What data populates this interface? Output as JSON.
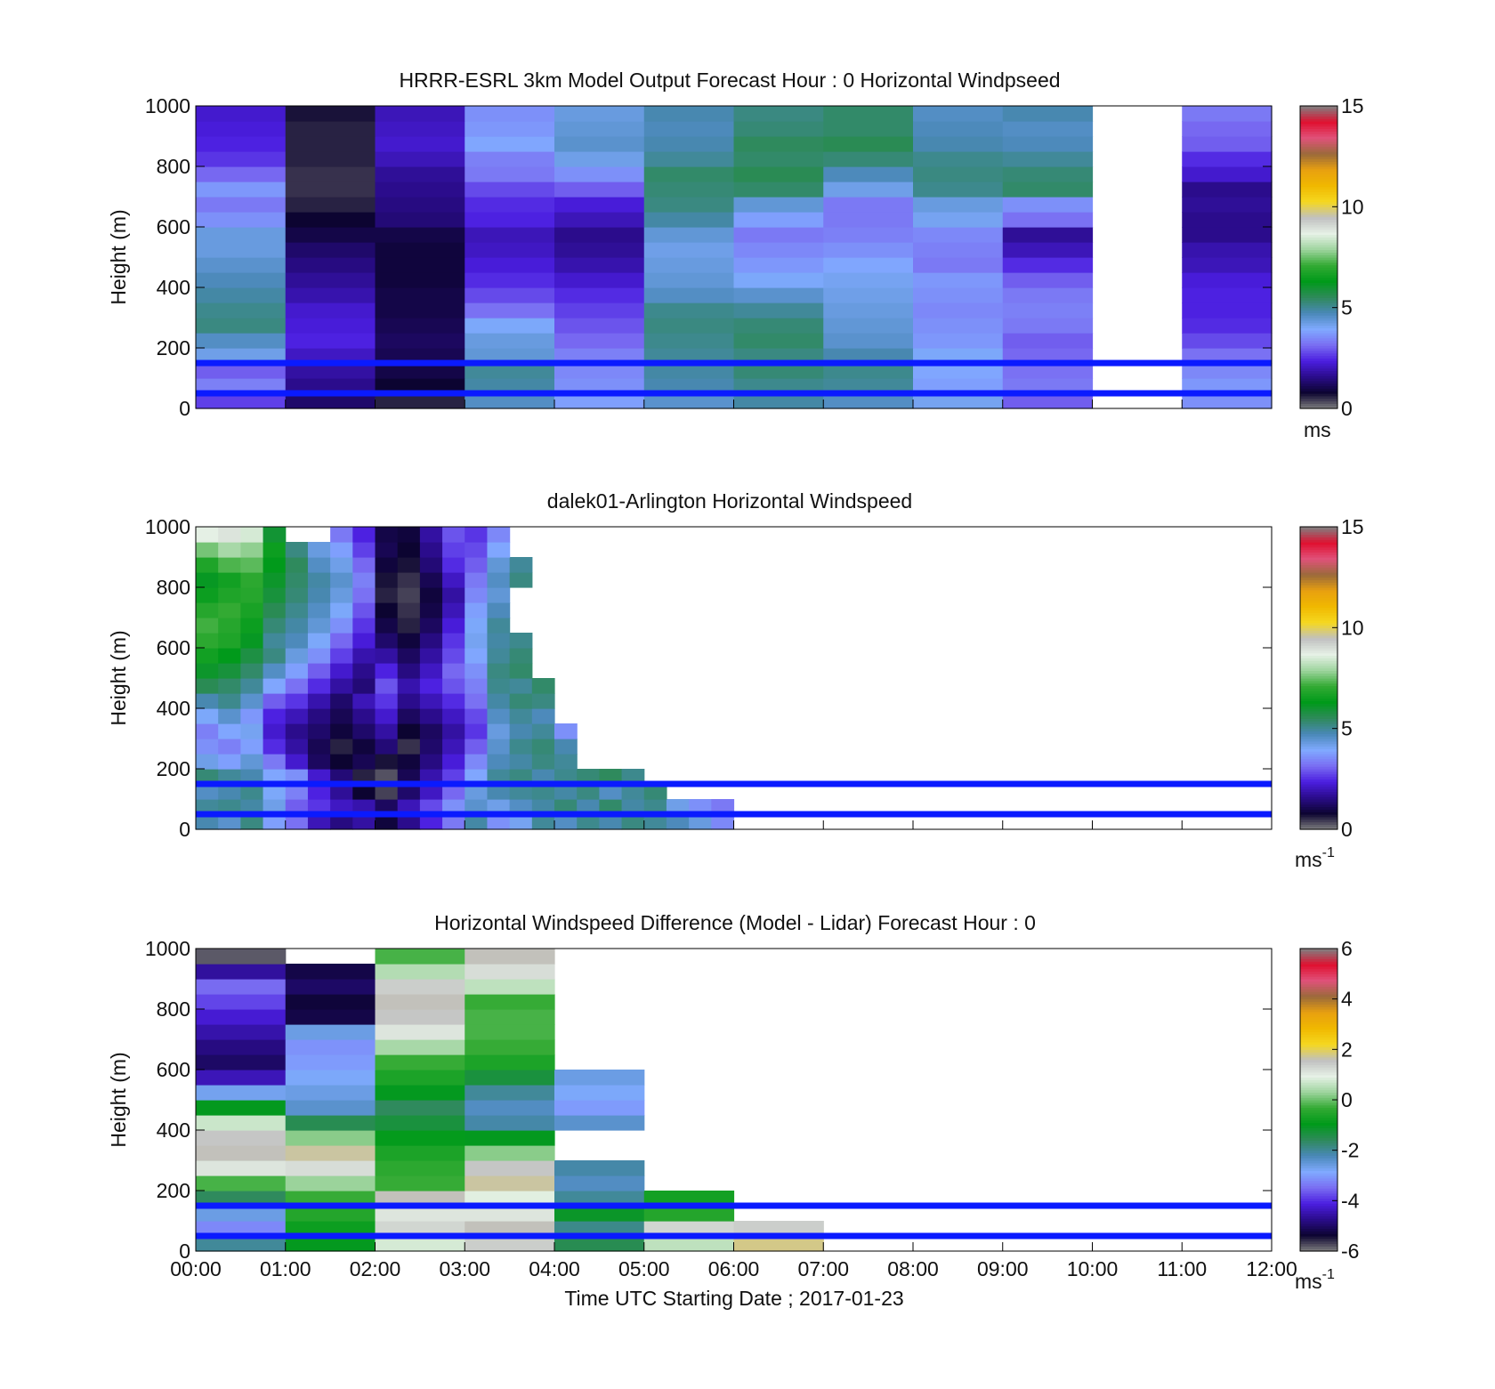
{
  "figure": {
    "xlabel": "Time UTC  Starting Date ; 2017-01-23"
  },
  "chart_data": [
    {
      "type": "heatmap",
      "title": "HRRR-ESRL 3km Model Output   Forecast Hour : 0 Horizontal Windpseed",
      "ylabel": "Height (m)",
      "xlabel": "",
      "xlim": [
        "00:00",
        "12:00"
      ],
      "ylim": [
        0,
        1000
      ],
      "x_ticks": [
        "00:00",
        "01:00",
        "02:00",
        "03:00",
        "04:00",
        "05:00",
        "06:00",
        "07:00",
        "08:00",
        "09:00",
        "10:00",
        "11:00",
        "12:00"
      ],
      "y_ticks": [
        0,
        200,
        400,
        600,
        800,
        1000
      ],
      "show_x_tick_labels": false,
      "height_bins_m": [
        0,
        50,
        100,
        150,
        200,
        250,
        300,
        350,
        400,
        450,
        500,
        550,
        600,
        650,
        700,
        750,
        800,
        850,
        900,
        950,
        1000
      ],
      "time_bins_hour": [
        0,
        1,
        2,
        3,
        4,
        5,
        6,
        7,
        8,
        9,
        10,
        11,
        12
      ],
      "values_ms": [
        [
          2.7,
          1.3,
          0.6,
          4.6,
          3.8,
          4.5,
          4.9,
          4.6,
          4.1,
          3.0,
          null,
          3.6
        ],
        [
          3.4,
          1.6,
          0.8,
          4.9,
          3.6,
          4.8,
          5.1,
          5.0,
          3.8,
          3.3,
          null,
          3.7
        ],
        [
          3.0,
          1.8,
          1.0,
          5.0,
          3.5,
          4.9,
          5.3,
          5.1,
          3.9,
          3.2,
          null,
          3.5
        ],
        [
          4.2,
          2.1,
          1.1,
          4.4,
          3.4,
          5.0,
          5.2,
          4.8,
          4.0,
          3.1,
          null,
          3.2
        ],
        [
          4.6,
          2.4,
          1.2,
          4.3,
          3.1,
          5.1,
          5.4,
          4.5,
          3.7,
          3.0,
          null,
          2.8
        ],
        [
          5.2,
          2.3,
          1.1,
          4.0,
          2.9,
          5.2,
          5.3,
          4.4,
          3.6,
          3.3,
          null,
          2.5
        ],
        [
          5.1,
          2.2,
          1.0,
          3.2,
          2.7,
          5.1,
          5.0,
          4.3,
          3.5,
          3.4,
          null,
          2.4
        ],
        [
          4.9,
          1.9,
          1.0,
          2.8,
          2.5,
          4.6,
          4.5,
          4.2,
          3.6,
          3.3,
          null,
          2.4
        ],
        [
          4.7,
          1.7,
          0.9,
          2.5,
          2.2,
          4.4,
          4.0,
          4.1,
          3.7,
          3.0,
          null,
          2.3
        ],
        [
          4.5,
          1.5,
          0.9,
          2.3,
          1.9,
          4.3,
          3.7,
          3.9,
          3.3,
          2.5,
          null,
          2.0
        ],
        [
          4.3,
          1.3,
          0.9,
          2.1,
          1.7,
          4.2,
          3.5,
          3.6,
          3.4,
          2.0,
          null,
          1.9
        ],
        [
          4.3,
          1.0,
          1.0,
          2.0,
          1.6,
          4.4,
          3.3,
          3.4,
          3.5,
          1.7,
          null,
          1.6
        ],
        [
          3.6,
          0.8,
          1.4,
          2.4,
          2.0,
          4.9,
          3.8,
          3.3,
          4.1,
          3.2,
          null,
          1.6
        ],
        [
          3.3,
          0.6,
          1.5,
          2.5,
          2.3,
          5.2,
          4.4,
          3.3,
          4.3,
          3.6,
          null,
          1.7
        ],
        [
          3.7,
          0.5,
          1.6,
          2.8,
          3.0,
          5.3,
          5.4,
          4.2,
          5.1,
          5.4,
          null,
          1.6
        ],
        [
          3.1,
          0.5,
          1.7,
          3.3,
          3.6,
          5.4,
          5.6,
          4.7,
          5.2,
          5.3,
          null,
          2.2
        ],
        [
          2.6,
          0.6,
          2.0,
          3.4,
          4.2,
          5.0,
          5.4,
          5.3,
          5.1,
          5.0,
          null,
          2.5
        ],
        [
          2.4,
          0.6,
          2.2,
          3.9,
          4.5,
          4.8,
          5.5,
          5.6,
          4.8,
          4.7,
          null,
          3.0
        ],
        [
          2.3,
          0.6,
          2.1,
          3.7,
          4.4,
          4.7,
          5.3,
          5.4,
          4.7,
          4.6,
          null,
          3.1
        ],
        [
          2.2,
          0.7,
          2.0,
          3.6,
          4.3,
          4.8,
          5.2,
          5.4,
          4.6,
          4.8,
          null,
          3.3
        ]
      ],
      "overlay_lines_m": [
        50,
        150
      ],
      "colorbar": {
        "label": "ms",
        "label_sup": "",
        "min": 0,
        "max": 15,
        "ticks": [
          0,
          5,
          10,
          15
        ]
      }
    },
    {
      "type": "heatmap",
      "title": "dalek01-Arlington  Horizontal Windspeed",
      "ylabel": "Height (m)",
      "xlabel": "",
      "xlim": [
        "00:00",
        "12:00"
      ],
      "ylim": [
        0,
        1000
      ],
      "x_ticks": [
        "00:00",
        "01:00",
        "02:00",
        "03:00",
        "04:00",
        "05:00",
        "06:00",
        "07:00",
        "08:00",
        "09:00",
        "10:00",
        "11:00",
        "12:00"
      ],
      "y_ticks": [
        0,
        200,
        400,
        600,
        800,
        1000
      ],
      "show_x_tick_labels": false,
      "height_bins_m": [
        0,
        50,
        100,
        150,
        200,
        250,
        300,
        350,
        400,
        450,
        500,
        550,
        600,
        650,
        700,
        750,
        800,
        850,
        900,
        950,
        1000
      ],
      "time_bins_hour": [
        0,
        0.25,
        0.5,
        0.75,
        1,
        1.25,
        1.5,
        1.75,
        2,
        2.25,
        2.5,
        2.75,
        3,
        3.25,
        3.5,
        3.75,
        4,
        4.25,
        4.5,
        4.75,
        5,
        5.25,
        5.5,
        5.75,
        6
      ],
      "values_ms": [
        [
          4.8,
          4.5,
          5.2,
          3.8,
          3.2,
          2.0,
          1.5,
          1.8,
          0.9,
          1.6,
          2.4,
          3.3,
          4.9,
          3.6,
          4.1,
          5.0,
          4.6,
          5.1,
          4.8,
          5.2,
          5.0,
          4.7,
          4.3,
          3.5
        ],
        [
          5.0,
          5.1,
          4.9,
          4.2,
          3.0,
          2.6,
          2.1,
          1.9,
          1.2,
          2.0,
          2.8,
          3.6,
          4.5,
          4.2,
          4.6,
          4.9,
          5.3,
          4.8,
          5.4,
          4.9,
          5.1,
          4.2,
          3.6,
          3.3
        ],
        [
          4.6,
          4.8,
          5.1,
          4.0,
          3.4,
          2.4,
          1.7,
          0.8,
          0.4,
          1.3,
          2.1,
          3.1,
          4.3,
          4.8,
          5.0,
          5.1,
          4.9,
          5.2,
          4.6,
          5.0,
          5.3,
          null,
          null,
          null
        ],
        [
          5.3,
          5.0,
          4.8,
          3.9,
          3.6,
          2.2,
          1.4,
          0.6,
          0.3,
          1.1,
          1.9,
          2.7,
          3.9,
          5.0,
          5.2,
          4.8,
          5.1,
          5.3,
          5.5,
          5.1,
          null,
          null,
          null,
          null
        ],
        [
          4.2,
          3.8,
          4.4,
          3.3,
          2.2,
          1.2,
          0.8,
          1.1,
          0.7,
          0.9,
          1.5,
          2.3,
          3.5,
          4.7,
          4.9,
          5.2,
          5.0,
          null,
          null,
          null,
          null,
          null,
          null,
          null
        ],
        [
          3.6,
          3.4,
          3.8,
          2.5,
          1.8,
          1.1,
          0.6,
          0.9,
          1.4,
          0.5,
          1.3,
          2.0,
          3.0,
          4.5,
          5.1,
          5.3,
          4.8,
          null,
          null,
          null,
          null,
          null,
          null,
          null
        ],
        [
          3.4,
          3.9,
          4.1,
          2.2,
          1.6,
          1.3,
          0.9,
          1.3,
          1.8,
          0.8,
          1.2,
          1.8,
          2.6,
          4.3,
          4.8,
          5.0,
          3.6,
          null,
          null,
          null,
          null,
          null,
          null,
          null
        ],
        [
          4.0,
          4.5,
          3.7,
          2.4,
          2.0,
          1.5,
          1.1,
          1.6,
          2.2,
          1.2,
          1.6,
          2.1,
          2.8,
          4.6,
          5.0,
          4.7,
          null,
          null,
          null,
          null,
          null,
          null,
          null,
          null
        ],
        [
          4.8,
          5.1,
          4.5,
          3.0,
          2.6,
          1.9,
          1.3,
          2.0,
          2.6,
          1.6,
          2.0,
          2.5,
          3.2,
          4.9,
          5.3,
          5.2,
          null,
          null,
          null,
          null,
          null,
          null,
          null,
          null
        ],
        [
          5.6,
          5.4,
          5.0,
          3.9,
          3.2,
          2.5,
          1.8,
          1.4,
          2.9,
          1.9,
          2.4,
          2.9,
          3.4,
          5.1,
          5.0,
          5.4,
          null,
          null,
          null,
          null,
          null,
          null,
          null,
          null
        ],
        [
          6.1,
          5.9,
          5.4,
          4.6,
          3.8,
          3.0,
          2.2,
          1.6,
          2.4,
          1.5,
          2.1,
          3.1,
          3.6,
          5.2,
          5.4,
          null,
          null,
          null,
          null,
          null,
          null,
          null,
          null,
          null
        ],
        [
          6.6,
          6.3,
          5.8,
          5.2,
          4.3,
          3.6,
          2.7,
          1.9,
          1.8,
          1.2,
          1.8,
          2.8,
          3.9,
          5.0,
          5.3,
          null,
          null,
          null,
          null,
          null,
          null,
          null,
          null,
          null
        ],
        [
          7.0,
          6.8,
          6.2,
          5.0,
          4.7,
          4.0,
          3.1,
          2.3,
          1.3,
          0.9,
          1.5,
          2.6,
          4.1,
          4.9,
          5.1,
          null,
          null,
          null,
          null,
          null,
          null,
          null,
          null,
          null
        ],
        [
          7.2,
          6.9,
          6.5,
          5.3,
          4.9,
          4.4,
          3.6,
          2.6,
          1.0,
          0.6,
          1.2,
          2.3,
          4.0,
          5.0,
          null,
          null,
          null,
          null,
          null,
          null,
          null,
          null,
          null,
          null
        ],
        [
          6.9,
          7.1,
          6.7,
          5.6,
          5.1,
          4.6,
          4.0,
          2.9,
          0.8,
          0.5,
          1.0,
          2.0,
          3.8,
          4.7,
          null,
          null,
          null,
          null,
          null,
          null,
          null,
          null,
          null,
          null
        ],
        [
          6.5,
          6.8,
          6.9,
          5.9,
          5.3,
          4.8,
          4.3,
          3.2,
          0.6,
          0.4,
          0.9,
          1.8,
          3.5,
          4.4,
          null,
          null,
          null,
          null,
          null,
          null,
          null,
          null,
          null,
          null
        ],
        [
          6.2,
          6.6,
          7.0,
          6.1,
          5.4,
          4.9,
          4.5,
          3.4,
          0.7,
          0.5,
          1.1,
          2.1,
          3.3,
          4.6,
          5.2,
          null,
          null,
          null,
          null,
          null,
          null,
          null,
          null,
          null
        ],
        [
          6.8,
          7.3,
          7.4,
          6.3,
          5.5,
          4.6,
          4.2,
          3.1,
          0.9,
          0.7,
          1.4,
          2.5,
          3.0,
          4.4,
          5.0,
          null,
          null,
          null,
          null,
          null,
          null,
          null,
          null,
          null
        ],
        [
          7.6,
          8.0,
          7.8,
          6.5,
          5.2,
          4.3,
          3.8,
          2.7,
          1.1,
          0.8,
          1.6,
          2.7,
          2.8,
          3.9,
          null,
          null,
          null,
          null,
          null,
          null,
          null,
          null,
          null,
          null
        ],
        [
          8.7,
          8.9,
          8.5,
          6.0,
          null,
          null,
          3.3,
          2.4,
          1.0,
          0.9,
          1.8,
          2.9,
          2.6,
          3.5,
          null,
          null,
          null,
          null,
          null,
          null,
          null,
          null,
          null,
          null
        ]
      ],
      "overlay_lines_m": [
        50,
        150
      ],
      "colorbar": {
        "label": "ms",
        "label_sup": "-1",
        "min": 0,
        "max": 15,
        "ticks": [
          0,
          5,
          10,
          15
        ]
      }
    },
    {
      "type": "heatmap",
      "title": "Horizontal Windspeed Difference (Model - Lidar) Forecast Hour : 0",
      "ylabel": "Height (m)",
      "xlabel": "Time UTC  Starting Date ; 2017-01-23",
      "xlim": [
        "00:00",
        "12:00"
      ],
      "ylim": [
        0,
        1000
      ],
      "x_ticks": [
        "00:00",
        "01:00",
        "02:00",
        "03:00",
        "04:00",
        "05:00",
        "06:00",
        "07:00",
        "08:00",
        "09:00",
        "10:00",
        "11:00",
        "12:00"
      ],
      "y_ticks": [
        0,
        200,
        400,
        600,
        800,
        1000
      ],
      "show_x_tick_labels": true,
      "height_bins_m": [
        0,
        50,
        100,
        150,
        200,
        250,
        300,
        350,
        400,
        450,
        500,
        550,
        600,
        650,
        700,
        750,
        800,
        850,
        900,
        950,
        1000
      ],
      "time_bins_hour": [
        0,
        1,
        2,
        3,
        4,
        5,
        6,
        7
      ],
      "values_ms": [
        [
          -2.0,
          -1.0,
          0.8,
          1.4,
          -1.5,
          0.6,
          1.8
        ],
        [
          -3.2,
          -0.8,
          1.3,
          1.6,
          -1.9,
          1.3,
          1.4
        ],
        [
          -2.6,
          -0.5,
          1.1,
          1.1,
          -1.1,
          -0.5,
          null
        ],
        [
          -1.6,
          -0.3,
          1.6,
          0.9,
          -2.0,
          -0.7,
          null
        ],
        [
          -0.2,
          0.3,
          -0.3,
          1.7,
          -2.3,
          null,
          null
        ],
        [
          1.1,
          1.2,
          -0.4,
          1.5,
          -2.1,
          null,
          null
        ],
        [
          1.6,
          1.7,
          -0.6,
          0.2,
          null,
          null,
          null
        ],
        [
          1.5,
          0.2,
          -0.9,
          -1.0,
          null,
          null,
          null
        ],
        [
          0.7,
          -1.5,
          -1.3,
          -2.1,
          -2.4,
          null,
          null
        ],
        [
          -1.0,
          -2.4,
          -1.6,
          -2.3,
          -3.0,
          null,
          null
        ],
        [
          -2.7,
          -2.6,
          -1.0,
          -2.0,
          -2.8,
          null,
          null
        ],
        [
          -4.4,
          -2.8,
          -0.6,
          -1.3,
          -2.6,
          null,
          null
        ],
        [
          -5.0,
          -3.0,
          -0.3,
          -0.6,
          null,
          null,
          null
        ],
        [
          -4.8,
          -3.1,
          0.4,
          -0.3,
          null,
          null,
          null
        ],
        [
          -4.5,
          -2.6,
          1.1,
          -0.2,
          null,
          null,
          null
        ],
        [
          -4.2,
          -5.2,
          1.5,
          -0.2,
          null,
          null,
          null
        ],
        [
          -3.8,
          -5.3,
          1.6,
          -0.3,
          null,
          null,
          null
        ],
        [
          -3.5,
          -5.0,
          1.4,
          0.6,
          null,
          null,
          null
        ],
        [
          -4.6,
          -5.2,
          0.5,
          1.2,
          null,
          null,
          null
        ],
        [
          -5.8,
          null,
          -0.2,
          1.6,
          null,
          null,
          null
        ]
      ],
      "overlay_lines_m": [
        50,
        150
      ],
      "colorbar": {
        "label": "ms",
        "label_sup": "-1",
        "min": -6,
        "max": 6,
        "ticks": [
          -6,
          -4,
          -2,
          0,
          2,
          4,
          6
        ]
      }
    }
  ],
  "palette": {
    "stops": [
      "#808080",
      "#0c0430",
      "#2a0c8a",
      "#4b1ee0",
      "#7a6ef2",
      "#80aaff",
      "#4a88b8",
      "#2e8a5a",
      "#009a1a",
      "#33aa33",
      "#9ed49e",
      "#e6f1e6",
      "#c0c0c0",
      "#f5d820",
      "#f0b800",
      "#e8a010",
      "#9a6a3a",
      "#e0527a",
      "#e01030",
      "#808080"
    ],
    "overlay_line_color": "#0a1aff"
  }
}
